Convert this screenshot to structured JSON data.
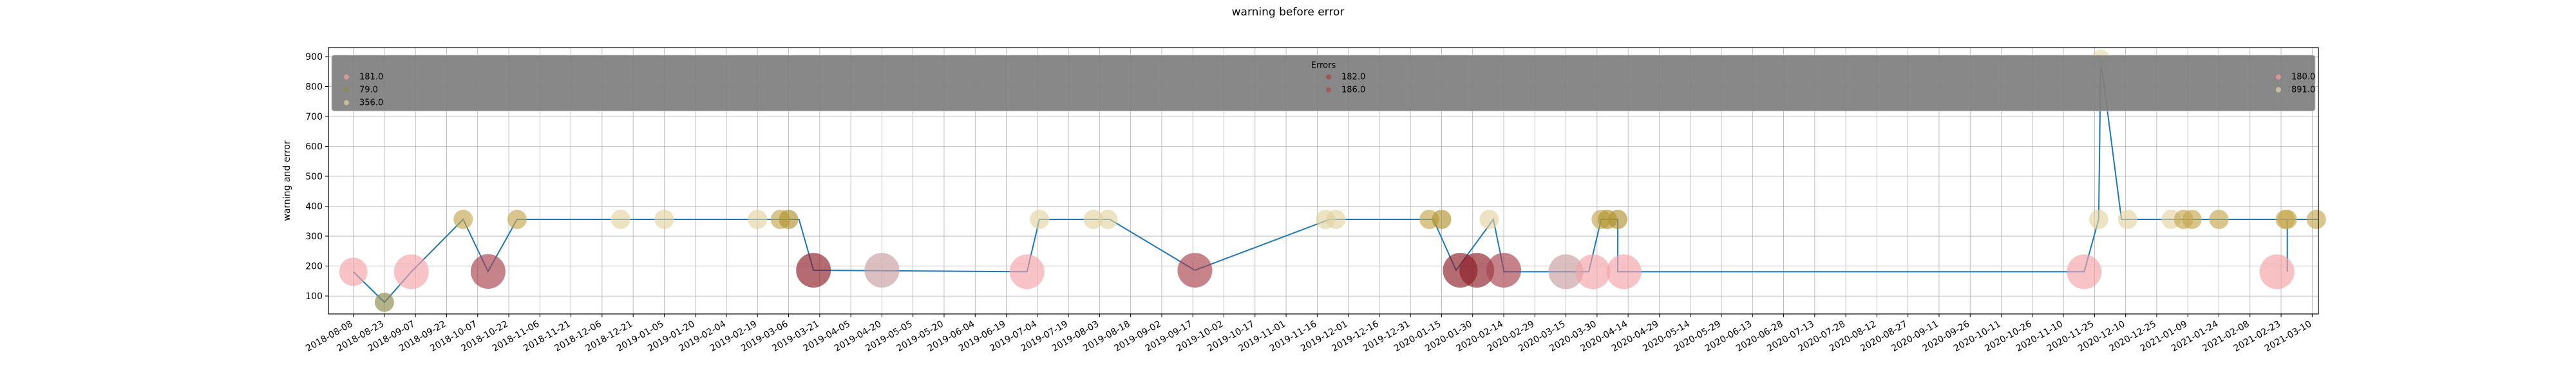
{
  "chart_data": {
    "type": "scatter",
    "title": "warning before error",
    "xlabel": "",
    "ylabel": "warning and error",
    "ylim": [
      40,
      930
    ],
    "xlim": [
      "2018-07-27",
      "2021-03-13"
    ],
    "grid": true,
    "y_ticks": [
      100,
      200,
      300,
      400,
      500,
      600,
      700,
      800,
      900
    ],
    "x_ticks": [
      "2018-08-08",
      "2018-08-23",
      "2018-09-07",
      "2018-09-22",
      "2018-10-07",
      "2018-10-22",
      "2018-11-06",
      "2018-11-21",
      "2018-12-06",
      "2018-12-21",
      "2019-01-05",
      "2019-01-20",
      "2019-02-04",
      "2019-02-19",
      "2019-03-06",
      "2019-03-21",
      "2019-04-05",
      "2019-04-20",
      "2019-05-05",
      "2019-05-20",
      "2019-06-04",
      "2019-06-19",
      "2019-07-04",
      "2019-07-19",
      "2019-08-03",
      "2019-08-18",
      "2019-09-02",
      "2019-09-17",
      "2019-10-02",
      "2019-10-17",
      "2019-11-01",
      "2019-11-16",
      "2019-12-01",
      "2019-12-16",
      "2019-12-31",
      "2020-01-15",
      "2020-01-30",
      "2020-02-14",
      "2020-02-29",
      "2020-03-15",
      "2020-03-30",
      "2020-04-14",
      "2020-04-29",
      "2020-05-14",
      "2020-05-29",
      "2020-06-13",
      "2020-06-28",
      "2020-07-13",
      "2020-07-28",
      "2020-08-12",
      "2020-08-27",
      "2020-09-11",
      "2020-09-26",
      "2020-10-11",
      "2020-10-26",
      "2020-11-10",
      "2020-11-25",
      "2020-12-10",
      "2020-12-25",
      "2021-01-09",
      "2021-01-24",
      "2021-02-08",
      "2021-02-23",
      "2021-03-10"
    ],
    "legend": {
      "title": "Errors",
      "placement": "top, full width",
      "entries": [
        {
          "label": "181.0",
          "color": "#f4a3a8"
        },
        {
          "label": "79.0",
          "color": "#8f8a4e"
        },
        {
          "label": "356.0",
          "color": "#e3d3a0"
        },
        {
          "label": "182.0",
          "color": "#a8424c"
        },
        {
          "label": "186.0",
          "color": "#a6484f"
        },
        {
          "label": "180.0",
          "color": "#f5a0a5"
        },
        {
          "label": "891.0",
          "color": "#e6dcb0"
        }
      ]
    },
    "line_color": "#1f77b4",
    "line": [
      [
        "2018-08-08",
        181
      ],
      [
        "2018-08-23",
        79
      ],
      [
        "2018-09-05",
        181
      ],
      [
        "2018-09-30",
        356
      ],
      [
        "2018-10-12",
        182
      ],
      [
        "2018-10-26",
        356
      ],
      [
        "2019-03-11",
        356
      ],
      [
        "2019-03-18",
        186
      ],
      [
        "2019-06-29",
        181
      ],
      [
        "2019-07-05",
        356
      ],
      [
        "2019-08-08",
        356
      ],
      [
        "2019-09-18",
        186
      ],
      [
        "2019-11-22",
        356
      ],
      [
        "2020-01-11",
        356
      ],
      [
        "2020-01-22",
        186
      ],
      [
        "2020-02-09",
        356
      ],
      [
        "2020-02-14",
        186
      ],
      [
        "2020-02-14",
        181
      ],
      [
        "2020-03-26",
        181
      ],
      [
        "2020-04-01",
        356
      ],
      [
        "2020-04-09",
        356
      ],
      [
        "2020-04-09",
        181
      ],
      [
        "2020-11-20",
        181
      ],
      [
        "2020-11-27",
        356
      ],
      [
        "2020-11-28",
        891
      ],
      [
        "2020-12-08",
        356
      ],
      [
        "2021-02-26",
        356
      ],
      [
        "2021-02-26",
        181
      ],
      [
        "2021-02-26",
        356
      ],
      [
        "2021-03-13",
        356
      ]
    ],
    "points": [
      {
        "x": "2018-08-08",
        "y": 181,
        "r": 22,
        "color": "#f4a3a8"
      },
      {
        "x": "2018-08-23",
        "y": 79,
        "r": 15,
        "color": "#8f8a4e"
      },
      {
        "x": "2018-09-05",
        "y": 181,
        "r": 27,
        "color": "#f4a3a8"
      },
      {
        "x": "2018-09-30",
        "y": 356,
        "r": 15,
        "color": "#c6a84e"
      },
      {
        "x": "2018-10-12",
        "y": 182,
        "r": 27,
        "color": "#a8424c"
      },
      {
        "x": "2018-10-26",
        "y": 356,
        "r": 15,
        "color": "#c6a84e"
      },
      {
        "x": "2018-12-15",
        "y": 356,
        "r": 15,
        "color": "#e3d3a0"
      },
      {
        "x": "2019-01-05",
        "y": 356,
        "r": 15,
        "color": "#e3d3a0"
      },
      {
        "x": "2019-02-19",
        "y": 356,
        "r": 15,
        "color": "#e3d3a0"
      },
      {
        "x": "2019-03-02",
        "y": 356,
        "r": 15,
        "color": "#c6a84e"
      },
      {
        "x": "2019-03-06",
        "y": 356,
        "r": 15,
        "color": "#b09230"
      },
      {
        "x": "2019-03-18",
        "y": 186,
        "r": 27,
        "color": "#8c1d27"
      },
      {
        "x": "2019-04-20",
        "y": 186,
        "r": 27,
        "color": "#c79da0"
      },
      {
        "x": "2019-06-29",
        "y": 181,
        "r": 27,
        "color": "#f4a3a8"
      },
      {
        "x": "2019-07-05",
        "y": 356,
        "r": 15,
        "color": "#e3d3a0"
      },
      {
        "x": "2019-07-31",
        "y": 356,
        "r": 15,
        "color": "#e3d3a0"
      },
      {
        "x": "2019-08-07",
        "y": 356,
        "r": 15,
        "color": "#e3d3a0"
      },
      {
        "x": "2019-09-18",
        "y": 186,
        "r": 27,
        "color": "#a8424c"
      },
      {
        "x": "2019-11-20",
        "y": 356,
        "r": 15,
        "color": "#e3d3a0"
      },
      {
        "x": "2019-11-25",
        "y": 356,
        "r": 15,
        "color": "#e3d3a0"
      },
      {
        "x": "2020-01-09",
        "y": 356,
        "r": 15,
        "color": "#c6a84e"
      },
      {
        "x": "2020-01-15",
        "y": 356,
        "r": 15,
        "color": "#b09230"
      },
      {
        "x": "2020-01-24",
        "y": 186,
        "r": 27,
        "color": "#8c1d27"
      },
      {
        "x": "2020-02-01",
        "y": 186,
        "r": 27,
        "color": "#8c1d27"
      },
      {
        "x": "2020-02-07",
        "y": 356,
        "r": 15,
        "color": "#e3d3a0"
      },
      {
        "x": "2020-02-14",
        "y": 186,
        "r": 27,
        "color": "#a8424c"
      },
      {
        "x": "2020-03-15",
        "y": 181,
        "r": 27,
        "color": "#c79da0"
      },
      {
        "x": "2020-03-28",
        "y": 181,
        "r": 27,
        "color": "#f4a3a8"
      },
      {
        "x": "2020-04-01",
        "y": 356,
        "r": 15,
        "color": "#c6a84e"
      },
      {
        "x": "2020-04-04",
        "y": 356,
        "r": 15,
        "color": "#b09230"
      },
      {
        "x": "2020-04-09",
        "y": 356,
        "r": 15,
        "color": "#b09230"
      },
      {
        "x": "2020-04-12",
        "y": 181,
        "r": 27,
        "color": "#f4a3a8"
      },
      {
        "x": "2020-11-20",
        "y": 181,
        "r": 27,
        "color": "#f4a3a8"
      },
      {
        "x": "2020-11-27",
        "y": 356,
        "r": 15,
        "color": "#e3d3a0"
      },
      {
        "x": "2020-11-28",
        "y": 891,
        "r": 15,
        "color": "#e6dcb0"
      },
      {
        "x": "2020-12-11",
        "y": 356,
        "r": 15,
        "color": "#e3d3a0"
      },
      {
        "x": "2021-01-01",
        "y": 356,
        "r": 15,
        "color": "#e3d3a0"
      },
      {
        "x": "2021-01-07",
        "y": 356,
        "r": 15,
        "color": "#c6a84e"
      },
      {
        "x": "2021-01-11",
        "y": 356,
        "r": 15,
        "color": "#c6a84e"
      },
      {
        "x": "2021-01-24",
        "y": 356,
        "r": 15,
        "color": "#c6a84e"
      },
      {
        "x": "2021-02-21",
        "y": 181,
        "r": 27,
        "color": "#f5a0a5"
      },
      {
        "x": "2021-02-25",
        "y": 356,
        "r": 15,
        "color": "#c6a84e"
      },
      {
        "x": "2021-02-26",
        "y": 356,
        "r": 15,
        "color": "#c6a84e"
      },
      {
        "x": "2021-03-12",
        "y": 356,
        "r": 15,
        "color": "#c6a84e"
      }
    ]
  }
}
